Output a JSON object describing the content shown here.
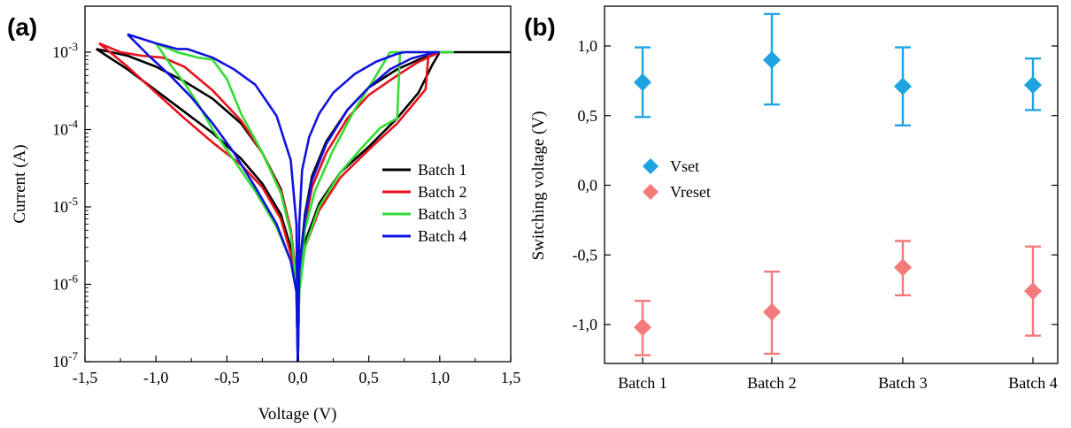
{
  "chart_data": [
    {
      "type": "line",
      "panel_label": "(a)",
      "xlabel": "Voltage (V)",
      "ylabel": "Current (A)",
      "xlim": [
        -1.5,
        1.5
      ],
      "ylim": [
        1e-07,
        0.0015
      ],
      "y_scale": "log",
      "grid": false,
      "legend_position": "center-right",
      "x_ticks": [
        -1.5,
        -1.0,
        -0.5,
        0.0,
        0.5,
        1.0,
        1.5
      ],
      "x_tick_labels": [
        "-1,5",
        "-1,0",
        "-0,5",
        "0,0",
        "0,5",
        "1,0",
        "1,5"
      ],
      "y_ticks": [
        1e-07,
        1e-06,
        1e-05,
        0.0001,
        0.001
      ],
      "y_tick_labels": [
        {
          "base": "10",
          "exp": "-7"
        },
        {
          "base": "10",
          "exp": "-6"
        },
        {
          "base": "10",
          "exp": "-5"
        },
        {
          "base": "10",
          "exp": "-4"
        },
        {
          "base": "10",
          "exp": "-3"
        }
      ],
      "series": [
        {
          "name": "Batch 1",
          "color": "#000000",
          "curves": [
            [
              [
                -1.42,
                0.0011
              ],
              [
                -1.2,
                0.0006
              ],
              [
                -1.0,
                0.00032
              ],
              [
                -0.8,
                0.00017
              ],
              [
                -0.6,
                9e-05
              ],
              [
                -0.4,
                4.2e-05
              ],
              [
                -0.25,
                2e-05
              ],
              [
                -0.12,
                8e-06
              ],
              [
                -0.05,
                3e-06
              ],
              [
                -0.01,
                1e-06
              ],
              [
                0.0,
                1e-07
              ]
            ],
            [
              [
                -1.42,
                0.0011
              ],
              [
                -1.2,
                0.0009
              ],
              [
                -1.0,
                0.00065
              ],
              [
                -0.8,
                0.00042
              ],
              [
                -0.6,
                0.00025
              ],
              [
                -0.4,
                0.00012
              ],
              [
                -0.25,
                5e-05
              ],
              [
                -0.12,
                1.7e-05
              ],
              [
                -0.05,
                5e-06
              ],
              [
                -0.01,
                1.2e-06
              ],
              [
                0.0,
                1e-07
              ]
            ],
            [
              [
                0.0,
                1e-07
              ],
              [
                0.01,
                1.5e-06
              ],
              [
                0.05,
                8e-06
              ],
              [
                0.1,
                2.5e-05
              ],
              [
                0.2,
                7e-05
              ],
              [
                0.35,
                0.00018
              ],
              [
                0.5,
                0.00035
              ],
              [
                0.7,
                0.0006
              ],
              [
                0.85,
                0.0008
              ],
              [
                1.0,
                0.001
              ]
            ],
            [
              [
                0.0,
                1e-07
              ],
              [
                0.01,
                1e-06
              ],
              [
                0.05,
                3.5e-06
              ],
              [
                0.15,
                1.1e-05
              ],
              [
                0.3,
                2.8e-05
              ],
              [
                0.5,
                6e-05
              ],
              [
                0.7,
                0.00014
              ],
              [
                0.85,
                0.0003
              ],
              [
                0.95,
                0.0007
              ],
              [
                1.0,
                0.001
              ]
            ],
            [
              [
                1.0,
                0.001
              ],
              [
                1.5,
                0.001
              ]
            ]
          ]
        },
        {
          "name": "Batch 2",
          "color": "#e8111c",
          "curves": [
            [
              [
                -1.4,
                0.0013
              ],
              [
                -1.2,
                0.00065
              ],
              [
                -1.0,
                0.0003
              ],
              [
                -0.8,
                0.00014
              ],
              [
                -0.6,
                6.8e-05
              ],
              [
                -0.4,
                3.5e-05
              ],
              [
                -0.25,
                1.8e-05
              ],
              [
                -0.12,
                7e-06
              ],
              [
                -0.05,
                2.5e-06
              ],
              [
                -0.01,
                9e-07
              ],
              [
                0.0,
                1e-07
              ]
            ],
            [
              [
                -1.4,
                0.0013
              ],
              [
                -1.25,
                0.001
              ],
              [
                -1.1,
                0.0009
              ],
              [
                -0.95,
                0.00085
              ],
              [
                -0.8,
                0.00065
              ],
              [
                -0.6,
                0.00032
              ],
              [
                -0.4,
                0.00013
              ],
              [
                -0.25,
                5e-05
              ],
              [
                -0.12,
                1.6e-05
              ],
              [
                -0.05,
                5e-06
              ],
              [
                -0.01,
                1.2e-06
              ],
              [
                0.0,
                1e-07
              ]
            ],
            [
              [
                0.0,
                1e-07
              ],
              [
                0.01,
                1.3e-06
              ],
              [
                0.05,
                6e-06
              ],
              [
                0.1,
                1.8e-05
              ],
              [
                0.2,
                5e-05
              ],
              [
                0.35,
                0.00014
              ],
              [
                0.5,
                0.00028
              ],
              [
                0.7,
                0.0005
              ],
              [
                0.85,
                0.00075
              ],
              [
                1.0,
                0.001
              ]
            ],
            [
              [
                0.0,
                1e-07
              ],
              [
                0.01,
                9e-07
              ],
              [
                0.05,
                3e-06
              ],
              [
                0.15,
                9e-06
              ],
              [
                0.3,
                2.4e-05
              ],
              [
                0.5,
                5.5e-05
              ],
              [
                0.7,
                0.00012
              ],
              [
                0.82,
                0.00022
              ],
              [
                0.9,
                0.00033
              ],
              [
                0.92,
                0.0009
              ],
              [
                1.0,
                0.001
              ]
            ]
          ]
        },
        {
          "name": "Batch 3",
          "color": "#33dd33",
          "curves": [
            [
              [
                -1.0,
                0.0013
              ],
              [
                -0.9,
                0.0007
              ],
              [
                -0.8,
                0.0004
              ],
              [
                -0.7,
                0.00021
              ],
              [
                -0.6,
                0.0001
              ],
              [
                -0.45,
                4e-05
              ],
              [
                -0.3,
                1.6e-05
              ],
              [
                -0.15,
                5.5e-06
              ],
              [
                -0.05,
                2e-06
              ],
              [
                -0.01,
                8e-07
              ],
              [
                0.0,
                1e-07
              ]
            ],
            [
              [
                -1.0,
                0.0013
              ],
              [
                -0.85,
                0.001
              ],
              [
                -0.7,
                0.00085
              ],
              [
                -0.6,
                0.0008
              ],
              [
                -0.5,
                0.00045
              ],
              [
                -0.4,
                0.00016
              ],
              [
                -0.25,
                5e-05
              ],
              [
                -0.12,
                1.5e-05
              ],
              [
                -0.05,
                4.5e-06
              ],
              [
                -0.01,
                1.1e-06
              ],
              [
                0.0,
                1e-07
              ]
            ],
            [
              [
                0.0,
                1e-07
              ],
              [
                0.01,
                1.2e-06
              ],
              [
                0.05,
                5e-06
              ],
              [
                0.12,
                1.6e-05
              ],
              [
                0.25,
                5.5e-05
              ],
              [
                0.4,
                0.00018
              ],
              [
                0.52,
                0.0004
              ],
              [
                0.6,
                0.0007
              ],
              [
                0.65,
                0.001
              ]
            ],
            [
              [
                0.0,
                1e-07
              ],
              [
                0.01,
                8e-07
              ],
              [
                0.05,
                3e-06
              ],
              [
                0.15,
                1e-05
              ],
              [
                0.3,
                2.8e-05
              ],
              [
                0.45,
                5.8e-05
              ],
              [
                0.58,
                0.000105
              ],
              [
                0.7,
                0.00014
              ],
              [
                0.72,
                0.001
              ]
            ],
            [
              [
                0.65,
                0.001
              ],
              [
                1.1,
                0.001
              ]
            ]
          ]
        },
        {
          "name": "Batch 4",
          "color": "#1111e0",
          "curves": [
            [
              [
                -1.2,
                0.0017
              ],
              [
                -1.05,
                0.0009
              ],
              [
                -0.9,
                0.0005
              ],
              [
                -0.75,
                0.00026
              ],
              [
                -0.6,
                0.00012
              ],
              [
                -0.45,
                5e-05
              ],
              [
                -0.3,
                1.8e-05
              ],
              [
                -0.15,
                6e-06
              ],
              [
                -0.05,
                2e-06
              ],
              [
                -0.01,
                8e-07
              ],
              [
                0.0,
                1e-07
              ]
            ],
            [
              [
                -1.2,
                0.0017
              ],
              [
                -1.0,
                0.0013
              ],
              [
                -0.85,
                0.0011
              ],
              [
                -0.78,
                0.0011
              ],
              [
                -0.6,
                0.00085
              ],
              [
                -0.45,
                0.0006
              ],
              [
                -0.3,
                0.00038
              ],
              [
                -0.15,
                0.00015
              ],
              [
                -0.05,
                4e-05
              ],
              [
                -0.01,
                6e-06
              ],
              [
                0.0,
                1e-07
              ]
            ],
            [
              [
                0.0,
                1e-07
              ],
              [
                0.01,
                6e-06
              ],
              [
                0.03,
                3e-05
              ],
              [
                0.08,
                8e-05
              ],
              [
                0.15,
                0.00016
              ],
              [
                0.25,
                0.0003
              ],
              [
                0.4,
                0.00052
              ],
              [
                0.55,
                0.00075
              ],
              [
                0.7,
                0.00095
              ],
              [
                0.75,
                0.001
              ]
            ],
            [
              [
                0.0,
                1e-07
              ],
              [
                0.01,
                1.5e-06
              ],
              [
                0.05,
                7e-06
              ],
              [
                0.1,
                2.2e-05
              ],
              [
                0.2,
                6.5e-05
              ],
              [
                0.35,
                0.00018
              ],
              [
                0.5,
                0.00035
              ],
              [
                0.65,
                0.0006
              ],
              [
                0.8,
                0.00083
              ],
              [
                0.97,
                0.001
              ]
            ],
            [
              [
                0.75,
                0.001
              ],
              [
                1.0,
                0.001
              ]
            ]
          ]
        }
      ]
    },
    {
      "type": "scatter",
      "panel_label": "(b)",
      "ylabel": "Switching voltage (V)",
      "categories": [
        "Batch 1",
        "Batch 2",
        "Batch 3",
        "Batch 4"
      ],
      "ylim": [
        -1.3,
        1.3
      ],
      "y_ticks": [
        -1.0,
        -0.5,
        0.0,
        0.5,
        1.0
      ],
      "y_tick_labels": [
        "-1,0",
        "-0,5",
        "0,0",
        "0,5",
        "1,0"
      ],
      "grid": false,
      "legend_position": "center-left",
      "marker": "diamond",
      "series": [
        {
          "name": "Vset",
          "color": "#1ea4e2",
          "values": [
            0.74,
            0.9,
            0.71,
            0.72
          ],
          "err_low": [
            0.49,
            0.58,
            0.43,
            0.54
          ],
          "err_high": [
            0.99,
            1.23,
            0.99,
            0.91
          ]
        },
        {
          "name": "Vreset",
          "color": "#f47a7a",
          "values": [
            -1.02,
            -0.91,
            -0.59,
            -0.76
          ],
          "err_low": [
            -1.22,
            -1.21,
            -0.79,
            -1.08
          ],
          "err_high": [
            -0.83,
            -0.62,
            -0.4,
            -0.44
          ]
        }
      ]
    }
  ]
}
